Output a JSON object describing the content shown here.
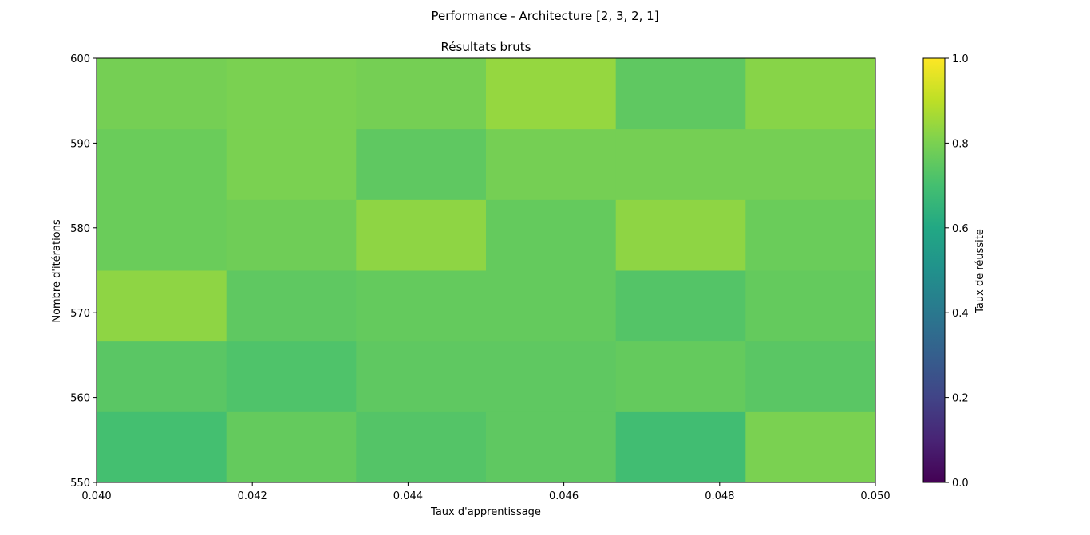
{
  "figure": {
    "suptitle": "Performance - Architecture [2, 3, 2, 1]"
  },
  "chart_data": {
    "type": "heatmap",
    "title": "Résultats bruts",
    "xlabel": "Taux d'apprentissage",
    "ylabel": "Nombre d'itérations",
    "xlim": [
      0.04,
      0.05
    ],
    "ylim": [
      550,
      600
    ],
    "xticks": [
      "0.040",
      "0.042",
      "0.044",
      "0.046",
      "0.048",
      "0.050"
    ],
    "yticks": [
      "550",
      "560",
      "570",
      "580",
      "590",
      "600"
    ],
    "x_edges": [
      0.04,
      0.041667,
      0.043333,
      0.045,
      0.046667,
      0.048333,
      0.05
    ],
    "y_edges": [
      550,
      558.33,
      566.67,
      575,
      583.33,
      591.67,
      600
    ],
    "values": [
      [
        0.7,
        0.76,
        0.73,
        0.75,
        0.69,
        0.8
      ],
      [
        0.74,
        0.72,
        0.75,
        0.75,
        0.76,
        0.74
      ],
      [
        0.83,
        0.75,
        0.76,
        0.76,
        0.73,
        0.76
      ],
      [
        0.77,
        0.78,
        0.83,
        0.76,
        0.83,
        0.77
      ],
      [
        0.77,
        0.8,
        0.75,
        0.79,
        0.79,
        0.79
      ],
      [
        0.79,
        0.8,
        0.79,
        0.84,
        0.75,
        0.82
      ]
    ],
    "colormap": "viridis",
    "colorbar": {
      "label": "Taux de réussite",
      "range": [
        0.0,
        1.0
      ],
      "ticks": [
        "0.0",
        "0.2",
        "0.4",
        "0.6",
        "0.8",
        "1.0"
      ]
    },
    "grid": false
  }
}
